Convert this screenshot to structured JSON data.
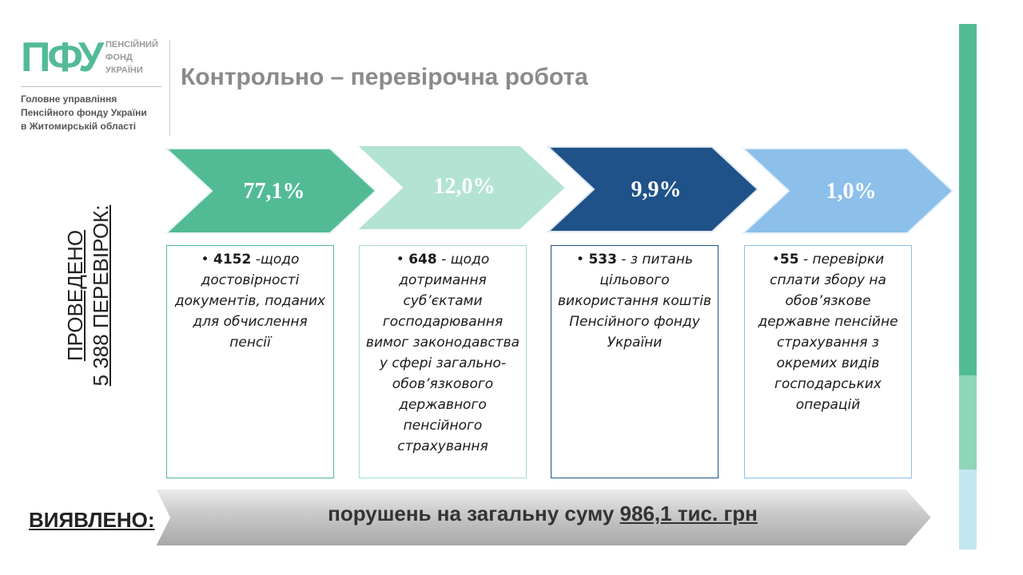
{
  "logo": {
    "mark": "ПФУ",
    "name_lines": [
      "ПЕНСІЙНИЙ",
      "ФОНД",
      "УКРАЇНИ"
    ],
    "subtitle_lines": [
      "Головне управління",
      "Пенсійного фонду України",
      "в Житомирській області"
    ]
  },
  "title": "Контрольно – перевірочна робота",
  "side_label": {
    "line1": "ПРОВЕДЕНО",
    "line2": "5 388 ПЕРЕВІРОК:"
  },
  "colors": {
    "c1": "#52bb96",
    "c2": "#b3e3d3",
    "c3": "#1f5289",
    "c4": "#8cc0ea",
    "accent": "#52bb96"
  },
  "cards": [
    {
      "percent": "77,1%",
      "count": "4152",
      "sep": " -",
      "text": "щодо достовірності документів, поданих для обчислення пенсії"
    },
    {
      "percent": "12,0%",
      "count": "648",
      "sep": " - ",
      "text": "щодо дотримання суб’єктами господарювання вимог законодавства у сфері загально-обов’язкового державного пенсійного страхування"
    },
    {
      "percent": "9,9%",
      "count": "533",
      "sep": " - ",
      "text": "з питань цільового використання коштів Пенсійного фонду України"
    },
    {
      "percent": "1,0%",
      "count": "55",
      "sep": " - ",
      "text": "перевірки сплати збору на обов’язкове державне пенсійне страхування з окремих видів господарських операцій"
    }
  ],
  "bullets": [
    "• ",
    "• ",
    "• ",
    "•"
  ],
  "bottom": {
    "label": "ВИЯВЛЕНО:",
    "text": "порушень на загальну суму ",
    "sum": "986,1 тис. грн"
  }
}
